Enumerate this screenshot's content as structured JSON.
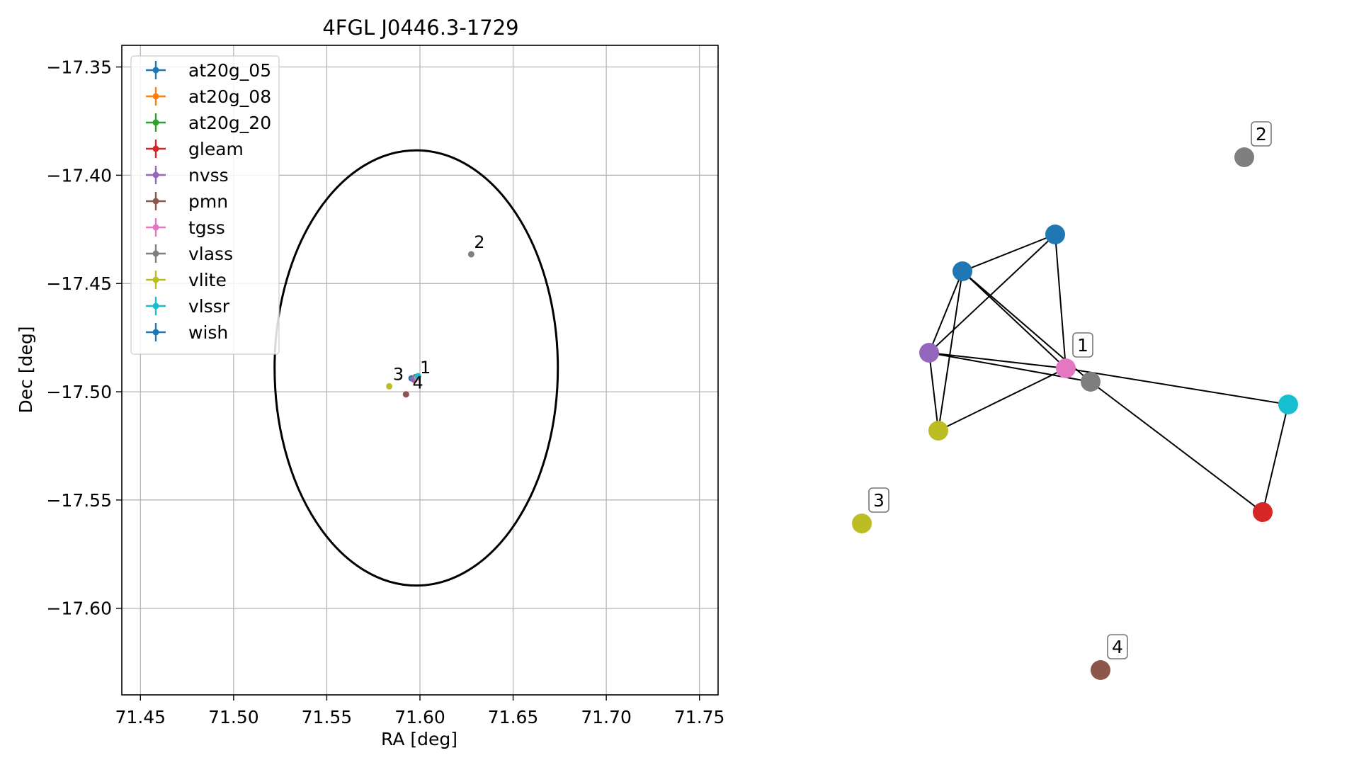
{
  "chart_data": [
    {
      "type": "scatter",
      "title": "4FGL J0446.3-1729",
      "xlabel": "RA [deg]",
      "ylabel": "Dec [deg]",
      "xlim": [
        71.44,
        71.76
      ],
      "ylim": [
        -17.64,
        -17.34
      ],
      "x_ticks": [
        71.45,
        71.5,
        71.55,
        71.6,
        71.65,
        71.7,
        71.75
      ],
      "x_tick_labels": [
        "71.45",
        "71.50",
        "71.55",
        "71.60",
        "71.65",
        "71.70",
        "71.75"
      ],
      "y_ticks": [
        -17.35,
        -17.4,
        -17.45,
        -17.5,
        -17.55,
        -17.6
      ],
      "y_tick_labels": [
        "−17.35",
        "−17.40",
        "−17.45",
        "−17.50",
        "−17.55",
        "−17.60"
      ],
      "grid": true,
      "legend_placement": "upper-left",
      "legend": [
        {
          "name": "at20g_05",
          "color": "#1f77b4"
        },
        {
          "name": "at20g_08",
          "color": "#ff7f0e"
        },
        {
          "name": "at20g_20",
          "color": "#2ca02c"
        },
        {
          "name": "gleam",
          "color": "#d62728"
        },
        {
          "name": "nvss",
          "color": "#9467bd"
        },
        {
          "name": "pmn",
          "color": "#8c564b"
        },
        {
          "name": "tgss",
          "color": "#e377c2"
        },
        {
          "name": "vlass",
          "color": "#7f7f7f"
        },
        {
          "name": "vlite",
          "color": "#bcbd22"
        },
        {
          "name": "vlssr",
          "color": "#17becf"
        },
        {
          "name": "wish",
          "color": "#1f77b4"
        }
      ],
      "ellipse": {
        "center": [
          71.598,
          -17.489
        ],
        "semi_ra": 0.076,
        "semi_dec": 0.1005,
        "color": "#000000"
      },
      "points": [
        {
          "x": 71.5955,
          "y": -17.4938,
          "color": "#1f77b4"
        },
        {
          "x": 71.597,
          "y": -17.4945,
          "color": "#d62728"
        },
        {
          "x": 71.5965,
          "y": -17.4942,
          "color": "#9467bd"
        },
        {
          "x": 71.5975,
          "y": -17.4932,
          "color": "#7f7f7f"
        },
        {
          "x": 71.5985,
          "y": -17.4935,
          "color": "#e377c2"
        },
        {
          "x": 71.599,
          "y": -17.4928,
          "color": "#17becf"
        },
        {
          "x": 71.6275,
          "y": -17.4365,
          "color": "#7f7f7f"
        },
        {
          "x": 71.5835,
          "y": -17.4975,
          "color": "#bcbd22"
        },
        {
          "x": 71.5925,
          "y": -17.5012,
          "color": "#8c564b"
        }
      ],
      "annotations": [
        {
          "text": "1",
          "x": 71.6,
          "y": -17.4915
        },
        {
          "text": "2",
          "x": 71.629,
          "y": -17.4335
        },
        {
          "text": "3",
          "x": 71.5855,
          "y": -17.4945
        },
        {
          "text": "4",
          "x": 71.596,
          "y": -17.4985
        }
      ]
    },
    {
      "type": "network",
      "nodes": [
        {
          "id": "n_blue_a",
          "color": "#1f77b4"
        },
        {
          "id": "n_blue_b",
          "color": "#1f77b4"
        },
        {
          "id": "n_purple",
          "color": "#9467bd"
        },
        {
          "id": "n_olive",
          "color": "#bcbd22"
        },
        {
          "id": "n_pink",
          "color": "#e377c2",
          "label": "1"
        },
        {
          "id": "n_gray",
          "color": "#7f7f7f"
        },
        {
          "id": "n_cyan",
          "color": "#17becf"
        },
        {
          "id": "n_red",
          "color": "#d62728"
        },
        {
          "id": "n_gray2",
          "color": "#7f7f7f",
          "label": "2"
        },
        {
          "id": "n_olive2",
          "color": "#bcbd22",
          "label": "3"
        },
        {
          "id": "n_brown",
          "color": "#8c564b",
          "label": "4"
        }
      ],
      "edges": [
        [
          "n_blue_a",
          "n_blue_b"
        ],
        [
          "n_blue_a",
          "n_purple"
        ],
        [
          "n_blue_a",
          "n_pink"
        ],
        [
          "n_blue_a",
          "n_gray"
        ],
        [
          "n_blue_a",
          "n_olive"
        ],
        [
          "n_blue_b",
          "n_purple"
        ],
        [
          "n_blue_b",
          "n_pink"
        ],
        [
          "n_purple",
          "n_olive"
        ],
        [
          "n_purple",
          "n_pink"
        ],
        [
          "n_purple",
          "n_gray"
        ],
        [
          "n_olive",
          "n_pink"
        ],
        [
          "n_pink",
          "n_cyan"
        ],
        [
          "n_gray",
          "n_red"
        ],
        [
          "n_cyan",
          "n_red"
        ]
      ]
    }
  ]
}
